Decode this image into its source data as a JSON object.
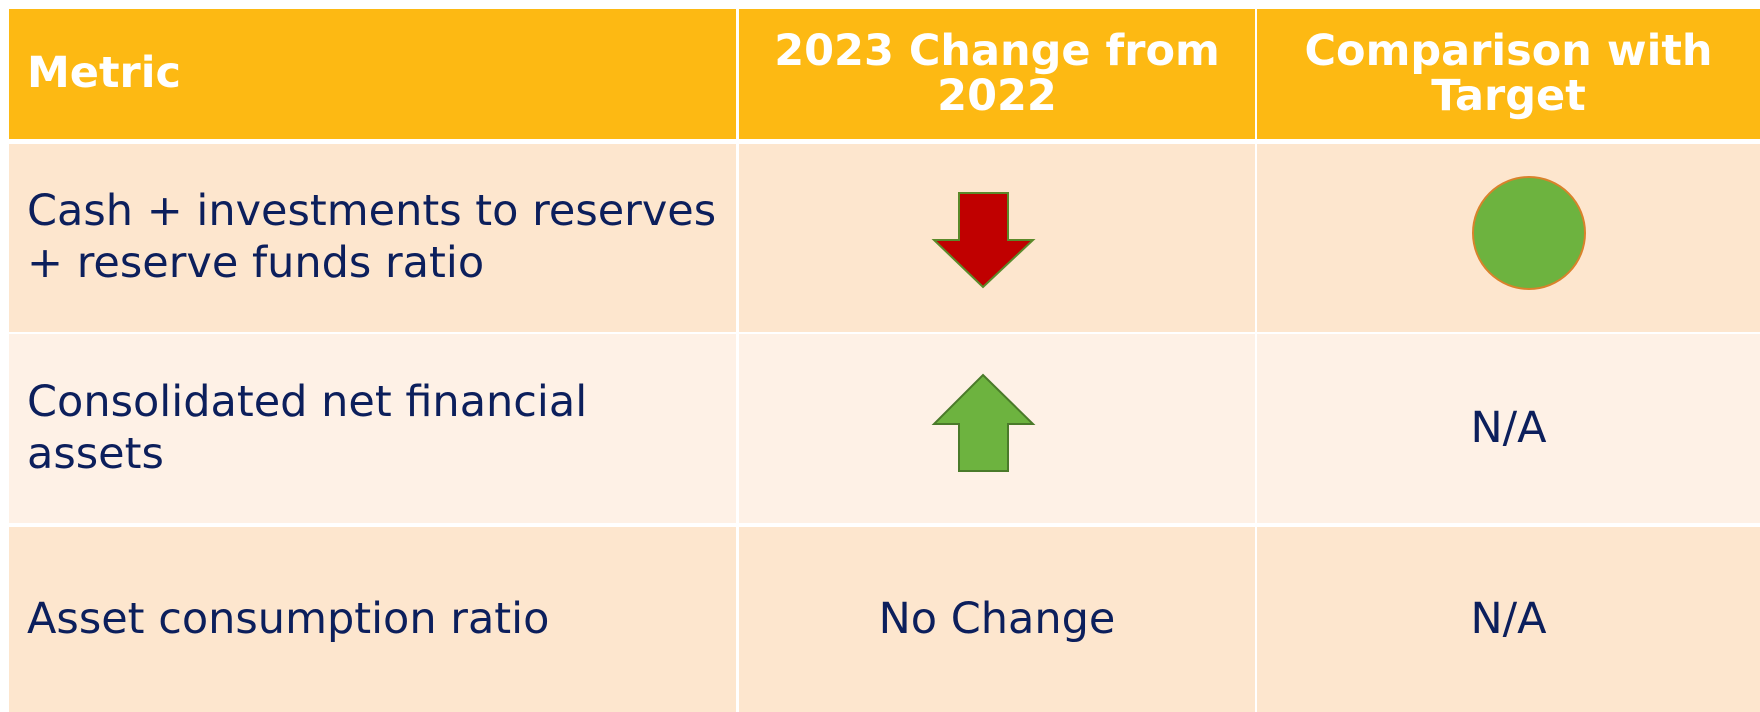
{
  "table": {
    "header": [
      "Metric",
      "2023 Change from 2022",
      "Comparison with Target"
    ],
    "rows": [
      {
        "metric": "Cash + investments to reserves + reserve funds ratio"
      },
      {
        "metric": "Consolidated net financial assets",
        "target": "N/A"
      },
      {
        "metric": "Asset consumption ratio",
        "change": "No Change",
        "target": "N/A"
      }
    ]
  }
}
